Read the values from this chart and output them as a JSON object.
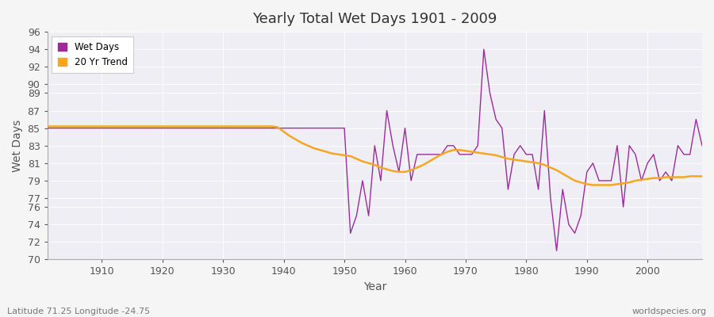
{
  "title": "Yearly Total Wet Days 1901 - 2009",
  "xlabel": "Year",
  "ylabel": "Wet Days",
  "footnote_left": "Latitude 71.25 Longitude -24.75",
  "footnote_right": "worldspecies.org",
  "ylim": [
    70,
    96
  ],
  "xlim": [
    1901,
    2009
  ],
  "yticks": [
    70,
    72,
    74,
    76,
    77,
    79,
    81,
    83,
    85,
    87,
    89,
    90,
    92,
    94,
    96
  ],
  "xticks": [
    1910,
    1920,
    1930,
    1940,
    1950,
    1960,
    1970,
    1980,
    1990,
    2000
  ],
  "wet_days_color": "#9b2d9b",
  "trend_color": "#f5a623",
  "background_color": "#eeeef4",
  "fig_background": "#f5f5f5",
  "wet_days": {
    "1901": 85,
    "1902": 85,
    "1903": 85,
    "1904": 85,
    "1905": 85,
    "1906": 85,
    "1907": 85,
    "1908": 85,
    "1909": 85,
    "1910": 85,
    "1911": 85,
    "1912": 85,
    "1913": 85,
    "1914": 85,
    "1915": 85,
    "1916": 85,
    "1917": 85,
    "1918": 85,
    "1919": 85,
    "1920": 85,
    "1921": 85,
    "1922": 85,
    "1923": 85,
    "1924": 85,
    "1925": 85,
    "1926": 85,
    "1927": 85,
    "1928": 85,
    "1929": 85,
    "1930": 85,
    "1931": 85,
    "1932": 85,
    "1933": 85,
    "1934": 85,
    "1935": 85,
    "1936": 85,
    "1937": 85,
    "1938": 85,
    "1939": 85,
    "1940": 85,
    "1941": 85,
    "1942": 85,
    "1943": 85,
    "1944": 85,
    "1945": 85,
    "1946": 85,
    "1947": 85,
    "1948": 85,
    "1949": 85,
    "1950": 85,
    "1951": 73,
    "1952": 75,
    "1953": 79,
    "1954": 75,
    "1955": 83,
    "1956": 79,
    "1957": 87,
    "1958": 83,
    "1959": 80,
    "1960": 85,
    "1961": 79,
    "1962": 82,
    "1963": 82,
    "1964": 82,
    "1965": 82,
    "1966": 82,
    "1967": 83,
    "1968": 83,
    "1969": 82,
    "1970": 82,
    "1971": 82,
    "1972": 83,
    "1973": 94,
    "1974": 89,
    "1975": 86,
    "1976": 85,
    "1977": 78,
    "1978": 82,
    "1979": 83,
    "1980": 82,
    "1981": 82,
    "1982": 78,
    "1983": 87,
    "1984": 77,
    "1985": 71,
    "1986": 78,
    "1987": 74,
    "1988": 73,
    "1989": 75,
    "1990": 80,
    "1991": 81,
    "1992": 79,
    "1993": 79,
    "1994": 79,
    "1995": 83,
    "1996": 76,
    "1997": 83,
    "1998": 82,
    "1999": 79,
    "2000": 81,
    "2001": 82,
    "2002": 79,
    "2003": 80,
    "2004": 79,
    "2005": 83,
    "2006": 82,
    "2007": 82,
    "2008": 86,
    "2009": 83
  },
  "trend_years": [
    1901,
    1902,
    1903,
    1904,
    1905,
    1906,
    1907,
    1908,
    1909,
    1910,
    1911,
    1912,
    1913,
    1914,
    1915,
    1916,
    1917,
    1918,
    1919,
    1920,
    1921,
    1922,
    1923,
    1924,
    1925,
    1926,
    1927,
    1928,
    1929,
    1930,
    1931,
    1932,
    1933,
    1934,
    1935,
    1936,
    1937,
    1938,
    1939,
    1940,
    1941,
    1942,
    1943,
    1944,
    1945,
    1946,
    1947,
    1948,
    1949,
    1950,
    1951,
    1952,
    1953,
    1954,
    1955,
    1956,
    1957,
    1958,
    1959,
    1960,
    1961,
    1962,
    1963,
    1964,
    1965,
    1966,
    1967,
    1968,
    1969,
    1970,
    1971,
    1972,
    1973,
    1974,
    1975,
    1976,
    1977,
    1978,
    1979,
    1980,
    1981,
    1982,
    1983,
    1984,
    1985,
    1986,
    1987,
    1988,
    1989,
    1990,
    1991,
    1992,
    1993,
    1994,
    1995,
    1996,
    1997,
    1998,
    1999,
    2000,
    2001,
    2002,
    2003,
    2004,
    2005,
    2006,
    2007,
    2008,
    2009
  ],
  "trend_vals": [
    85.2,
    85.2,
    85.2,
    85.2,
    85.2,
    85.2,
    85.2,
    85.2,
    85.2,
    85.2,
    85.2,
    85.2,
    85.2,
    85.2,
    85.2,
    85.2,
    85.2,
    85.2,
    85.2,
    85.2,
    85.2,
    85.2,
    85.2,
    85.2,
    85.2,
    85.2,
    85.2,
    85.2,
    85.2,
    85.2,
    85.2,
    85.2,
    85.2,
    85.2,
    85.2,
    85.2,
    85.2,
    85.2,
    85.1,
    84.6,
    84.1,
    83.7,
    83.3,
    83.0,
    82.7,
    82.5,
    82.3,
    82.1,
    82.0,
    81.9,
    81.8,
    81.5,
    81.2,
    81.0,
    80.8,
    80.5,
    80.3,
    80.1,
    80.0,
    80.0,
    80.2,
    80.5,
    80.8,
    81.2,
    81.6,
    82.0,
    82.3,
    82.5,
    82.5,
    82.4,
    82.3,
    82.2,
    82.1,
    82.0,
    81.9,
    81.7,
    81.5,
    81.4,
    81.3,
    81.2,
    81.1,
    81.0,
    80.8,
    80.5,
    80.2,
    79.8,
    79.4,
    79.0,
    78.8,
    78.6,
    78.5,
    78.5,
    78.5,
    78.5,
    78.6,
    78.7,
    78.8,
    79.0,
    79.1,
    79.2,
    79.3,
    79.3,
    79.4,
    79.4,
    79.4,
    79.4,
    79.5,
    79.5,
    79.5
  ]
}
